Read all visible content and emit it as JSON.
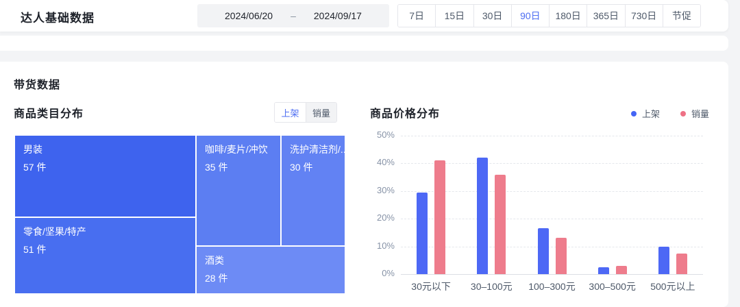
{
  "header": {
    "title": "达人基础数据",
    "date_range": {
      "start": "2024/06/20",
      "separator": "–",
      "end": "2024/09/17"
    },
    "periods": [
      {
        "label": "7日",
        "active": false
      },
      {
        "label": "15日",
        "active": false
      },
      {
        "label": "30日",
        "active": false
      },
      {
        "label": "90日",
        "active": true
      },
      {
        "label": "180日",
        "active": false
      },
      {
        "label": "365日",
        "active": false
      },
      {
        "label": "730日",
        "active": false
      },
      {
        "label": "节促",
        "active": false
      }
    ],
    "accent_color": "#4E6EF2"
  },
  "section": {
    "title": "带货数据"
  },
  "category_panel": {
    "title": "商品类目分布",
    "toggle": [
      {
        "label": "上架",
        "active": true
      },
      {
        "label": "销量",
        "active": false
      }
    ],
    "treemap": {
      "unit": "件",
      "cells": [
        {
          "name": "男装",
          "value": 57,
          "color": "#3E63EE"
        },
        {
          "name": "零食/坚果/特产",
          "value": 51,
          "color": "#486EF0"
        },
        {
          "name": "咖啡/麦片/冲饮",
          "value": 35,
          "color": "#5C7EF2"
        },
        {
          "name": "洗护清洁剂/...",
          "value": 30,
          "color": "#6282F3"
        },
        {
          "name": "酒类",
          "value": 28,
          "color": "#6D8BF5"
        }
      ]
    }
  },
  "price_panel": {
    "title": "商品价格分布",
    "legend": [
      {
        "label": "上架",
        "color": "#4465F5"
      },
      {
        "label": "销量",
        "color": "#EE7185"
      }
    ]
  },
  "chart_data": {
    "type": "bar",
    "title": "商品价格分布",
    "categories": [
      "30元以下",
      "30–100元",
      "100–300元",
      "300–500元",
      "500元以上"
    ],
    "series": [
      {
        "name": "上架",
        "color": "#4D68F5",
        "values": [
          29.5,
          42,
          16.5,
          2.5,
          10
        ]
      },
      {
        "name": "销量",
        "color": "#EE7C8C",
        "values": [
          41,
          36,
          13,
          3,
          7.5
        ]
      }
    ],
    "xlabel": "",
    "ylabel": "",
    "ylim": [
      0,
      50
    ],
    "yticks": [
      0,
      10,
      20,
      30,
      40,
      50
    ],
    "ytick_suffix": "%",
    "grid": "dashed-horizontal",
    "legend_position": "top-right"
  }
}
